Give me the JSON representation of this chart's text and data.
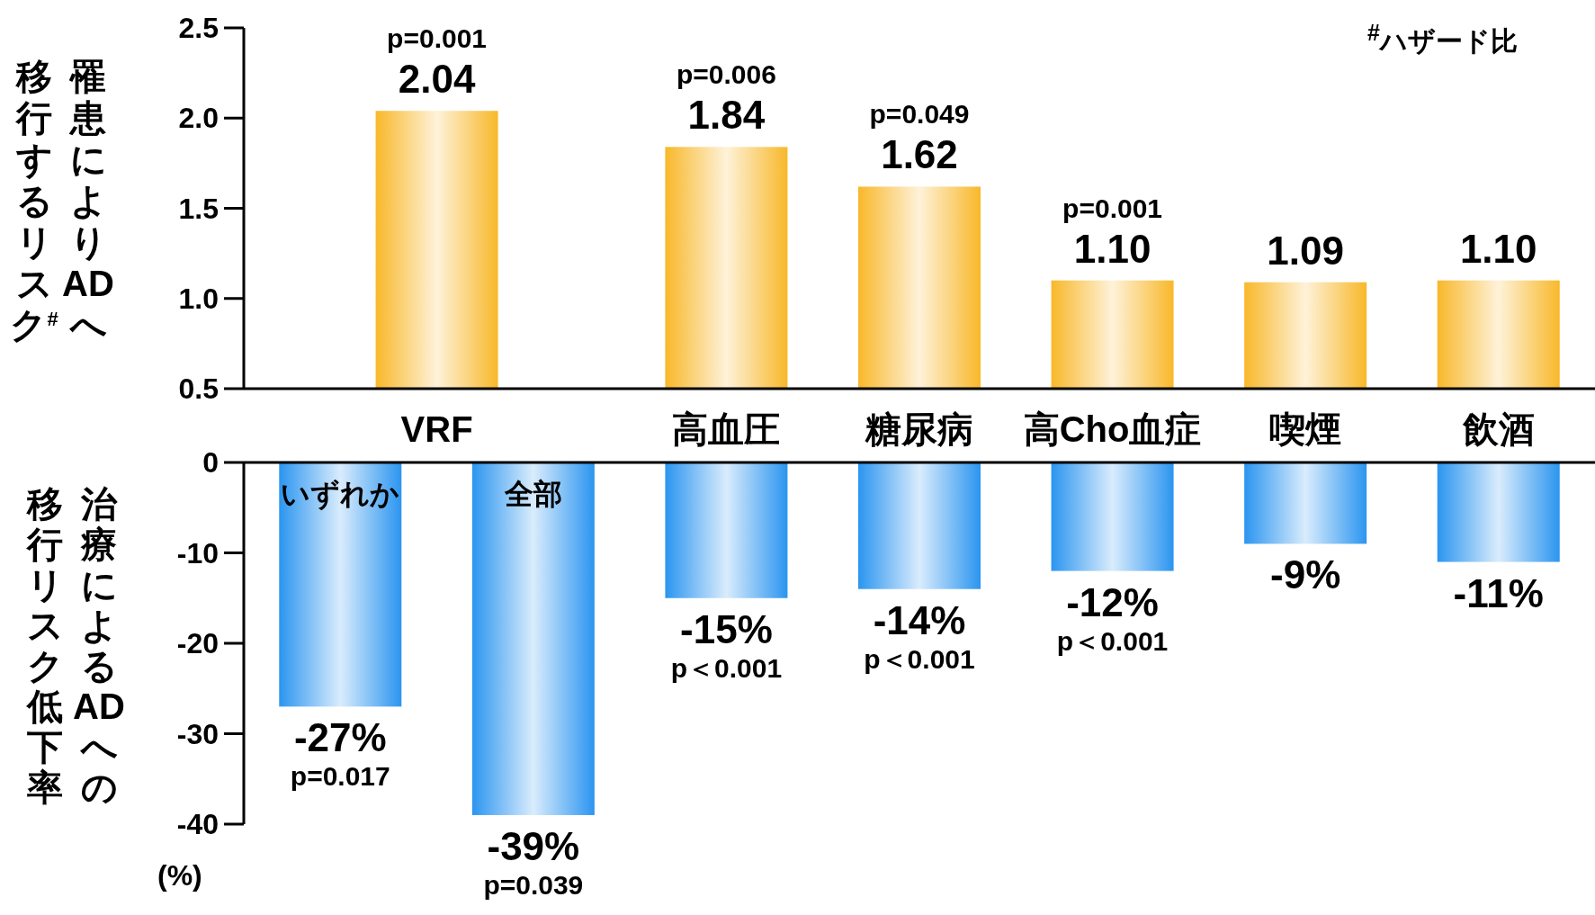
{
  "chart_data": [
    {
      "type": "bar",
      "ylabel": "罹患によりADへ移行するリスク$^{#}$",
      "categories": [
        "VRF",
        "高血圧",
        "糖尿病",
        "高Cho血症",
        "喫煙",
        "飲酒"
      ],
      "values": [
        2.04,
        1.84,
        1.62,
        1.1,
        1.09,
        1.1
      ],
      "color": "#f8b82a",
      "ylim": [
        0.5,
        2.5
      ],
      "yticks": [
        {
          "value": 0.5,
          "label": "0.5"
        },
        {
          "value": 1,
          "label": "1.0"
        },
        {
          "value": 1.5,
          "label": "1.5"
        },
        {
          "value": 2,
          "label": "2.0"
        },
        {
          "value": 2.5,
          "label": "2.5"
        }
      ],
      "value_labels": [
        "p=0.001\n2.04",
        "p=0.006\n1.84",
        "p=0.049\n1.62",
        "p=0.001\n1.10",
        "1.09",
        "1.10"
      ],
      "annotations": [
        "$^{#}$ハザード比"
      ]
    },
    {
      "type": "bar",
      "ylabel": "治療によるADへの移行リスク低下率",
      "categories": [
        "いずれか",
        "全部",
        null,
        null,
        null,
        null,
        null
      ],
      "values": [
        -27,
        -39,
        -15,
        -14,
        -12,
        -9,
        -11
      ],
      "color": "#2b95f0",
      "ylim": [
        -40,
        0
      ],
      "yticks": [
        {
          "value": -40,
          "label": "-40"
        },
        {
          "value": -30,
          "label": "-30"
        },
        {
          "value": -20,
          "label": "-20"
        },
        {
          "value": -10,
          "label": "-10"
        },
        0
      ],
      "value_labels": [
        "-27%\np=0.017",
        "-39%\np=0.039",
        "-15%\np＜0.001",
        "-14%\np＜0.001",
        "-12%\np＜0.001",
        "-9%",
        "-11%"
      ],
      "annotations": [
        "(%)"
      ]
    }
  ]
}
